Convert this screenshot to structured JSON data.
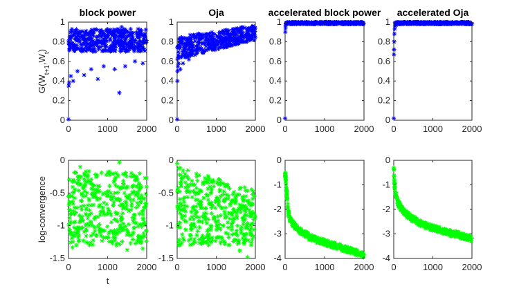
{
  "chart_data": [
    {
      "type": "scatter",
      "title": "block power",
      "ylabel": "G(W_{t+1},W_t)",
      "xlabel": "",
      "xlim": [
        0,
        2000
      ],
      "ylim": [
        0,
        1
      ],
      "xticks": [
        "0",
        "1000",
        "2000"
      ],
      "yticks": [
        "0",
        "0.2",
        "0.4",
        "0.6",
        "0.8",
        "1"
      ],
      "marker": "asterisk",
      "color": "#0000ff",
      "band": {
        "t_start": 0,
        "t_end": 2000,
        "low_start": 0.7,
        "low_end": 0.7,
        "high_start": 0.93,
        "high_end": 0.93
      },
      "outliers": [
        {
          "x": 0,
          "y": 0.01
        },
        {
          "x": 5,
          "y": 0.35
        },
        {
          "x": 15,
          "y": 0.38
        },
        {
          "x": 60,
          "y": 0.45
        },
        {
          "x": 120,
          "y": 0.4
        },
        {
          "x": 230,
          "y": 0.5
        },
        {
          "x": 400,
          "y": 0.46
        },
        {
          "x": 580,
          "y": 0.52
        },
        {
          "x": 750,
          "y": 0.42
        },
        {
          "x": 900,
          "y": 0.55
        },
        {
          "x": 1180,
          "y": 0.52
        },
        {
          "x": 1300,
          "y": 0.28
        },
        {
          "x": 1360,
          "y": 0.95
        },
        {
          "x": 1450,
          "y": 0.55
        },
        {
          "x": 1700,
          "y": 0.6
        },
        {
          "x": 1900,
          "y": 0.58
        }
      ]
    },
    {
      "type": "scatter",
      "title": "Oja",
      "ylabel": "",
      "xlabel": "",
      "xlim": [
        0,
        2000
      ],
      "ylim": [
        0,
        1
      ],
      "xticks": [
        "0",
        "1000",
        "2000"
      ],
      "yticks": [
        "0",
        "0.2",
        "0.4",
        "0.6",
        "0.8",
        "1"
      ],
      "marker": "asterisk",
      "color": "#0000ff",
      "band": {
        "t_start": 0,
        "t_end": 2000,
        "low_start": 0.62,
        "low_end": 0.82,
        "high_start": 0.85,
        "high_end": 0.97
      },
      "outliers": [
        {
          "x": 0,
          "y": 0.01
        },
        {
          "x": 5,
          "y": 0.4
        },
        {
          "x": 10,
          "y": 0.5
        },
        {
          "x": 20,
          "y": 0.55
        },
        {
          "x": 40,
          "y": 0.58
        },
        {
          "x": 80,
          "y": 0.52
        },
        {
          "x": 150,
          "y": 0.58
        },
        {
          "x": 300,
          "y": 0.62
        },
        {
          "x": 500,
          "y": 0.68
        },
        {
          "x": 700,
          "y": 0.7
        },
        {
          "x": 950,
          "y": 0.73
        },
        {
          "x": 1200,
          "y": 0.76
        },
        {
          "x": 1500,
          "y": 0.8
        },
        {
          "x": 1800,
          "y": 0.82
        }
      ]
    },
    {
      "type": "scatter",
      "title": "accelerated block power",
      "ylabel": "",
      "xlabel": "",
      "xlim": [
        0,
        2000
      ],
      "ylim": [
        0,
        1
      ],
      "xticks": [
        "0",
        "1000",
        "2000"
      ],
      "yticks": [
        "0",
        "0.2",
        "0.4",
        "0.6",
        "0.8",
        "1"
      ],
      "marker": "asterisk",
      "color": "#0000ff",
      "band": {
        "t_start": 20,
        "t_end": 2000,
        "low_start": 0.98,
        "low_end": 0.98,
        "high_start": 1.0,
        "high_end": 1.0
      },
      "outliers": [
        {
          "x": 0,
          "y": 0.02
        },
        {
          "x": 5,
          "y": 0.9
        },
        {
          "x": 10,
          "y": 0.94
        },
        {
          "x": 15,
          "y": 0.97
        }
      ]
    },
    {
      "type": "scatter",
      "title": "accelerated Oja",
      "ylabel": "",
      "xlabel": "",
      "xlim": [
        0,
        2000
      ],
      "ylim": [
        0,
        1
      ],
      "xticks": [
        "0",
        "1000",
        "2000"
      ],
      "yticks": [
        "0",
        "0.2",
        "0.4",
        "0.6",
        "0.8",
        "1"
      ],
      "marker": "asterisk",
      "color": "#0000ff",
      "band": {
        "t_start": 30,
        "t_end": 2000,
        "low_start": 0.98,
        "low_end": 0.98,
        "high_start": 1.0,
        "high_end": 1.0
      },
      "outliers": [
        {
          "x": 0,
          "y": 0.02
        },
        {
          "x": 5,
          "y": 0.67
        },
        {
          "x": 8,
          "y": 0.72
        },
        {
          "x": 12,
          "y": 0.8
        },
        {
          "x": 18,
          "y": 0.88
        },
        {
          "x": 25,
          "y": 0.93
        },
        {
          "x": 35,
          "y": 0.96
        },
        {
          "x": 60,
          "y": 0.97
        }
      ]
    },
    {
      "type": "scatter",
      "title": "",
      "ylabel": "log-convergence",
      "xlabel": "t",
      "xlim": [
        0,
        2000
      ],
      "ylim": [
        -1.5,
        0
      ],
      "xticks": [
        "0",
        "1000",
        "2000"
      ],
      "yticks": [
        "-1.5",
        "-1",
        "-0.5",
        "0"
      ],
      "marker": "asterisk",
      "color": "#00ff00",
      "band": {
        "t_start": 0,
        "t_end": 2000,
        "low_start": -1.3,
        "low_end": -1.3,
        "high_start": -0.15,
        "high_end": -0.2
      },
      "outliers": [
        {
          "x": 1300,
          "y": -0.03
        },
        {
          "x": 300,
          "y": -0.1
        },
        {
          "x": 1900,
          "y": -1.35
        },
        {
          "x": 1500,
          "y": -1.37
        },
        {
          "x": 100,
          "y": -1.33
        }
      ]
    },
    {
      "type": "scatter",
      "title": "",
      "ylabel": "",
      "xlabel": "",
      "xlim": [
        0,
        2000
      ],
      "ylim": [
        -1.5,
        0
      ],
      "xticks": [
        "0",
        "1000",
        "2000"
      ],
      "yticks": [
        "-1.5",
        "-1",
        "-0.5",
        "0"
      ],
      "marker": "asterisk",
      "color": "#00ff00",
      "band": {
        "t_start": 0,
        "t_end": 2000,
        "low_start": -1.3,
        "low_end": -1.3,
        "high_start": -0.1,
        "high_end": -0.45
      },
      "outliers": [
        {
          "x": 0,
          "y": -0.05
        },
        {
          "x": 1800,
          "y": -1.48
        },
        {
          "x": 1600,
          "y": -1.38
        },
        {
          "x": 500,
          "y": -0.25
        }
      ]
    },
    {
      "type": "scatter",
      "title": "",
      "ylabel": "",
      "xlabel": "",
      "xlim": [
        0,
        2000
      ],
      "ylim": [
        -4,
        0
      ],
      "xticks": [
        "0",
        "1000",
        "2000"
      ],
      "yticks": [
        "-4",
        "-3",
        "-2",
        "-1",
        "0"
      ],
      "marker": "asterisk",
      "color": "#00ff00",
      "curve": [
        [
          0,
          -0.55
        ],
        [
          20,
          -0.8
        ],
        [
          50,
          -1.6
        ],
        [
          80,
          -2.1
        ],
        [
          120,
          -2.4
        ],
        [
          200,
          -2.6
        ],
        [
          400,
          -2.9
        ],
        [
          600,
          -3.1
        ],
        [
          800,
          -3.25
        ],
        [
          1000,
          -3.35
        ],
        [
          1200,
          -3.45
        ],
        [
          1400,
          -3.55
        ],
        [
          1600,
          -3.65
        ],
        [
          1800,
          -3.75
        ],
        [
          2000,
          -3.85
        ]
      ],
      "spread": 0.12
    },
    {
      "type": "scatter",
      "title": "",
      "ylabel": "",
      "xlabel": "",
      "xlim": [
        0,
        2000
      ],
      "ylim": [
        -4,
        0
      ],
      "xticks": [
        "0",
        "1000",
        "2000"
      ],
      "yticks": [
        "-4",
        "-3",
        "-2",
        "-1",
        "0"
      ],
      "marker": "asterisk",
      "color": "#00ff00",
      "curve": [
        [
          0,
          -0.3
        ],
        [
          20,
          -1.0
        ],
        [
          50,
          -1.4
        ],
        [
          100,
          -1.7
        ],
        [
          200,
          -2.0
        ],
        [
          400,
          -2.3
        ],
        [
          600,
          -2.5
        ],
        [
          800,
          -2.65
        ],
        [
          1000,
          -2.75
        ],
        [
          1200,
          -2.85
        ],
        [
          1400,
          -2.95
        ],
        [
          1600,
          -3.02
        ],
        [
          1800,
          -3.1
        ],
        [
          2000,
          -3.2
        ]
      ],
      "spread": 0.12
    }
  ]
}
